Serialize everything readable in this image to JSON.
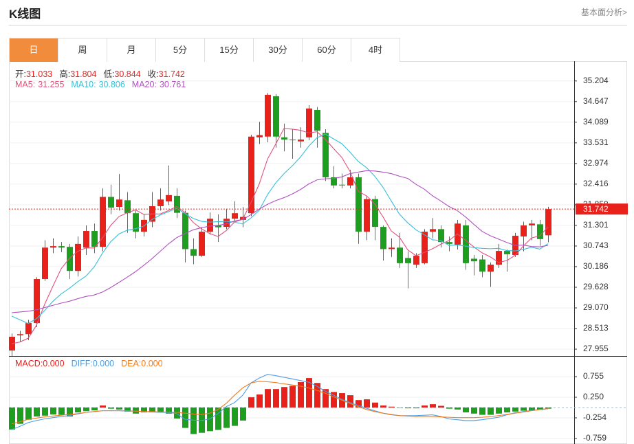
{
  "header": {
    "title": "K线图",
    "link": "基本面分析>"
  },
  "tabs": [
    {
      "label": "日",
      "active": true
    },
    {
      "label": "周",
      "active": false
    },
    {
      "label": "月",
      "active": false
    },
    {
      "label": "5分",
      "active": false
    },
    {
      "label": "15分",
      "active": false
    },
    {
      "label": "30分",
      "active": false
    },
    {
      "label": "60分",
      "active": false
    },
    {
      "label": "4时",
      "active": false
    }
  ],
  "chart_data": [
    {
      "type": "candlestick",
      "ohlc_legend": [
        "开:",
        "高:",
        "低:",
        "收:"
      ],
      "up_color": "#e8221b",
      "down_color": "#1e9e1e",
      "open": [
        27.92,
        28.33,
        28.36,
        28.66,
        29.85,
        30.7,
        30.74,
        30.72,
        30.07,
        30.7,
        31.15,
        30.72,
        32.07,
        31.8,
        31.98,
        31.63,
        31.13,
        31.4,
        31.82,
        31.95,
        32.1,
        31.64,
        30.66,
        30.48,
        31.13,
        31.3,
        31.26,
        31.48,
        31.45,
        31.63,
        33.68,
        33.7,
        34.79,
        33.68,
        33.62,
        33.57,
        33.68,
        34.42,
        33.8,
        32.6,
        32.4,
        32.38,
        32.6,
        31.13,
        32.01,
        31.26,
        30.66,
        30.7,
        30.42,
        30.24,
        30.28,
        31.13,
        31.2,
        30.85,
        30.78,
        31.3,
        30.4,
        30.38,
        30.05,
        30.24,
        30.61,
        30.5,
        31.0,
        31.3,
        31.33,
        31.033
      ],
      "high": [
        28.38,
        28.45,
        28.75,
        29.9,
        30.9,
        30.95,
        30.85,
        30.8,
        31.0,
        31.3,
        31.35,
        32.3,
        32.4,
        32.69,
        32.2,
        31.7,
        31.6,
        32.2,
        32.3,
        32.92,
        32.3,
        31.7,
        30.95,
        31.25,
        31.65,
        31.6,
        31.75,
        31.95,
        31.8,
        33.75,
        34.1,
        34.88,
        34.85,
        34.05,
        33.9,
        33.95,
        34.55,
        34.5,
        33.9,
        32.9,
        32.7,
        32.8,
        32.7,
        32.1,
        32.1,
        31.3,
        30.95,
        31.1,
        30.6,
        30.55,
        31.2,
        31.5,
        31.3,
        31.0,
        31.45,
        31.45,
        30.5,
        30.5,
        30.3,
        30.8,
        30.65,
        31.1,
        31.4,
        31.45,
        31.45,
        31.804
      ],
      "low": [
        27.77,
        28.15,
        28.2,
        28.55,
        29.8,
        30.55,
        30.58,
        29.85,
        29.92,
        30.5,
        30.55,
        30.6,
        31.6,
        31.7,
        31.1,
        30.95,
        31.0,
        31.25,
        31.7,
        31.85,
        31.5,
        30.3,
        30.25,
        30.45,
        31.05,
        30.85,
        31.2,
        31.4,
        31.25,
        31.55,
        33.5,
        33.55,
        33.4,
        33.3,
        33.1,
        33.4,
        33.6,
        33.4,
        32.5,
        32.3,
        32.3,
        32.3,
        30.8,
        30.9,
        30.9,
        30.35,
        30.45,
        30.15,
        29.6,
        30.15,
        30.25,
        30.95,
        30.7,
        30.6,
        30.65,
        30.1,
        29.95,
        29.9,
        29.64,
        30.15,
        30.05,
        30.45,
        30.6,
        30.9,
        30.75,
        30.844
      ],
      "close": [
        28.29,
        28.36,
        28.66,
        29.85,
        30.7,
        30.74,
        30.7,
        30.07,
        30.8,
        31.15,
        30.72,
        32.07,
        31.78,
        32.0,
        31.63,
        31.13,
        31.45,
        31.82,
        32.0,
        32.12,
        31.64,
        30.66,
        30.48,
        31.13,
        31.48,
        31.25,
        31.48,
        31.63,
        31.53,
        33.7,
        33.74,
        34.83,
        33.7,
        33.62,
        33.6,
        33.62,
        34.46,
        33.86,
        32.6,
        32.38,
        32.38,
        32.6,
        31.13,
        32.01,
        31.26,
        30.66,
        30.7,
        30.28,
        30.28,
        30.48,
        31.13,
        31.2,
        30.85,
        30.8,
        31.35,
        30.28,
        30.33,
        30.05,
        30.24,
        30.61,
        30.52,
        31.02,
        31.3,
        31.35,
        30.93,
        31.742
      ],
      "lines": [
        {
          "label": "MA5:",
          "color": "#e2507a",
          "values": [
            28.1,
            28.15,
            28.25,
            28.6,
            29.17,
            29.66,
            30.13,
            30.41,
            30.6,
            30.69,
            30.69,
            30.96,
            31.3,
            31.54,
            31.64,
            31.72,
            31.6,
            31.61,
            31.61,
            31.7,
            31.81,
            31.65,
            31.38,
            31.21,
            31.08,
            31.0,
            31.16,
            31.39,
            31.47,
            31.92,
            32.42,
            33.09,
            33.5,
            33.92,
            33.9,
            33.87,
            33.8,
            33.83,
            33.63,
            33.38,
            33.14,
            32.76,
            32.22,
            32.1,
            31.88,
            31.53,
            31.15,
            30.98,
            30.64,
            30.48,
            30.57,
            30.67,
            30.79,
            30.89,
            31.07,
            30.9,
            30.72,
            30.56,
            30.45,
            30.3,
            30.35,
            30.49,
            30.74,
            30.96,
            31.02,
            31.255
          ]
        },
        {
          "label": "MA10:",
          "color": "#35c0d8",
          "values": [
            28.85,
            28.75,
            28.65,
            28.78,
            29.0,
            29.25,
            29.45,
            29.6,
            29.78,
            29.93,
            30.18,
            30.55,
            30.86,
            31.07,
            31.17,
            31.21,
            31.28,
            31.46,
            31.58,
            31.67,
            31.76,
            31.62,
            31.49,
            31.41,
            31.39,
            31.4,
            31.41,
            31.39,
            31.34,
            31.5,
            31.71,
            32.13,
            32.45,
            32.7,
            32.91,
            33.15,
            33.44,
            33.67,
            33.77,
            33.64,
            33.51,
            33.28,
            33.03,
            32.86,
            32.63,
            32.33,
            31.96,
            31.6,
            31.37,
            31.18,
            31.05,
            30.91,
            30.89,
            30.76,
            30.77,
            30.74,
            30.7,
            30.68,
            30.67,
            30.68,
            30.62,
            30.61,
            30.65,
            30.71,
            30.66,
            30.806
          ]
        },
        {
          "label": "MA20:",
          "color": "#b050c0",
          "values": [
            28.94,
            28.96,
            28.98,
            29.02,
            29.08,
            29.14,
            29.2,
            29.25,
            29.32,
            29.38,
            29.42,
            29.5,
            29.62,
            29.76,
            29.9,
            30.05,
            30.22,
            30.4,
            30.6,
            30.8,
            30.97,
            31.08,
            31.18,
            31.24,
            31.28,
            31.3,
            31.34,
            31.42,
            31.46,
            31.59,
            31.74,
            31.87,
            31.97,
            32.05,
            32.15,
            32.27,
            32.42,
            32.53,
            32.56,
            32.57,
            32.61,
            32.7,
            32.74,
            32.78,
            32.77,
            32.74,
            32.7,
            32.63,
            32.57,
            32.41,
            32.28,
            32.1,
            31.96,
            31.81,
            31.7,
            31.53,
            31.33,
            31.14,
            31.02,
            30.93,
            30.84,
            30.76,
            30.77,
            30.73,
            30.72,
            30.761
          ]
        }
      ],
      "last_price_marker": true,
      "grid": true,
      "ylim": [
        27.77,
        35.72
      ],
      "yticks": [
        35.204,
        34.647,
        34.089,
        33.531,
        32.974,
        32.416,
        31.858,
        31.301,
        30.743,
        30.186,
        29.628,
        {
          "value": 29.07,
          "label": "29.070"
        },
        28.513,
        27.955
      ]
    },
    {
      "type": "macd",
      "up_color": "#e8221b",
      "down_color": "#1e9e1e",
      "histogram": [
        -0.54,
        -0.4,
        -0.3,
        -0.22,
        -0.2,
        -0.17,
        -0.18,
        -0.22,
        -0.12,
        -0.09,
        -0.07,
        0.05,
        -0.03,
        -0.05,
        -0.1,
        -0.15,
        -0.12,
        -0.12,
        -0.12,
        -0.15,
        -0.27,
        -0.5,
        -0.65,
        -0.62,
        -0.58,
        -0.55,
        -0.5,
        -0.45,
        -0.32,
        0.25,
        0.32,
        0.45,
        0.45,
        0.5,
        0.53,
        0.62,
        0.72,
        0.6,
        0.45,
        0.38,
        0.35,
        0.3,
        0.18,
        0.2,
        0.12,
        0.05,
        0.02,
        -0.01,
        -0.02,
        -0.02,
        0.05,
        0.08,
        0.04,
        -0.03,
        -0.05,
        -0.12,
        -0.15,
        -0.18,
        -0.18,
        -0.15,
        -0.12,
        -0.1,
        -0.08,
        -0.08,
        -0.06,
        -0.03
      ],
      "lines": [
        {
          "color": "#4a9ee6",
          "values": [
            -0.54,
            -0.46,
            -0.37,
            -0.32,
            -0.28,
            -0.25,
            -0.22,
            -0.2,
            -0.16,
            -0.12,
            -0.1,
            -0.08,
            -0.08,
            -0.08,
            -0.09,
            -0.09,
            -0.1,
            -0.11,
            -0.12,
            -0.12,
            -0.15,
            -0.29,
            -0.31,
            -0.32,
            -0.28,
            -0.15,
            0.02,
            0.12,
            0.3,
            0.6,
            0.72,
            0.81,
            0.78,
            0.74,
            0.7,
            0.66,
            0.62,
            0.52,
            0.4,
            0.3,
            0.2,
            0.12,
            0.05,
            -0.02,
            -0.08,
            -0.14,
            -0.18,
            -0.2,
            -0.2,
            -0.2,
            -0.19,
            -0.18,
            -0.22,
            -0.28,
            -0.3,
            -0.32,
            -0.32,
            -0.3,
            -0.27,
            -0.24,
            -0.18,
            -0.13,
            -0.1,
            -0.07,
            -0.05,
            -0.03
          ]
        },
        {
          "color": "#f07c1e",
          "values": [
            -0.4,
            -0.35,
            -0.29,
            -0.26,
            -0.23,
            -0.21,
            -0.19,
            -0.17,
            -0.15,
            -0.12,
            -0.1,
            -0.08,
            -0.08,
            -0.08,
            -0.08,
            -0.09,
            -0.1,
            -0.1,
            -0.11,
            -0.11,
            -0.12,
            -0.14,
            -0.16,
            -0.17,
            -0.14,
            -0.05,
            0.1,
            0.3,
            0.48,
            0.6,
            0.64,
            0.63,
            0.61,
            0.58,
            0.55,
            0.52,
            0.48,
            0.42,
            0.35,
            0.26,
            0.18,
            0.1,
            0.02,
            -0.05,
            -0.1,
            -0.14,
            -0.17,
            -0.2,
            -0.21,
            -0.22,
            -0.22,
            -0.22,
            -0.23,
            -0.24,
            -0.25,
            -0.25,
            -0.25,
            -0.24,
            -0.22,
            -0.2,
            -0.17,
            -0.14,
            -0.11,
            -0.08,
            -0.05,
            -0.03
          ]
        }
      ],
      "legend": [
        {
          "label": "MACD:",
          "value": 0,
          "value_label": "0.000",
          "color": "#e8221b"
        },
        {
          "label": "DIFF:",
          "value": 0,
          "value_label": "0.000",
          "color": "#4a9ee6"
        },
        {
          "label": "DEA:",
          "value": 0,
          "value_label": "0.000",
          "color": "#f07c1e"
        }
      ],
      "zero_line": true,
      "ylim": [
        -0.894,
        1.26
      ],
      "yticks": [
        0.755,
        {
          "value": 0.25,
          "label": "0.250"
        },
        -0.254,
        -0.759
      ]
    }
  ]
}
